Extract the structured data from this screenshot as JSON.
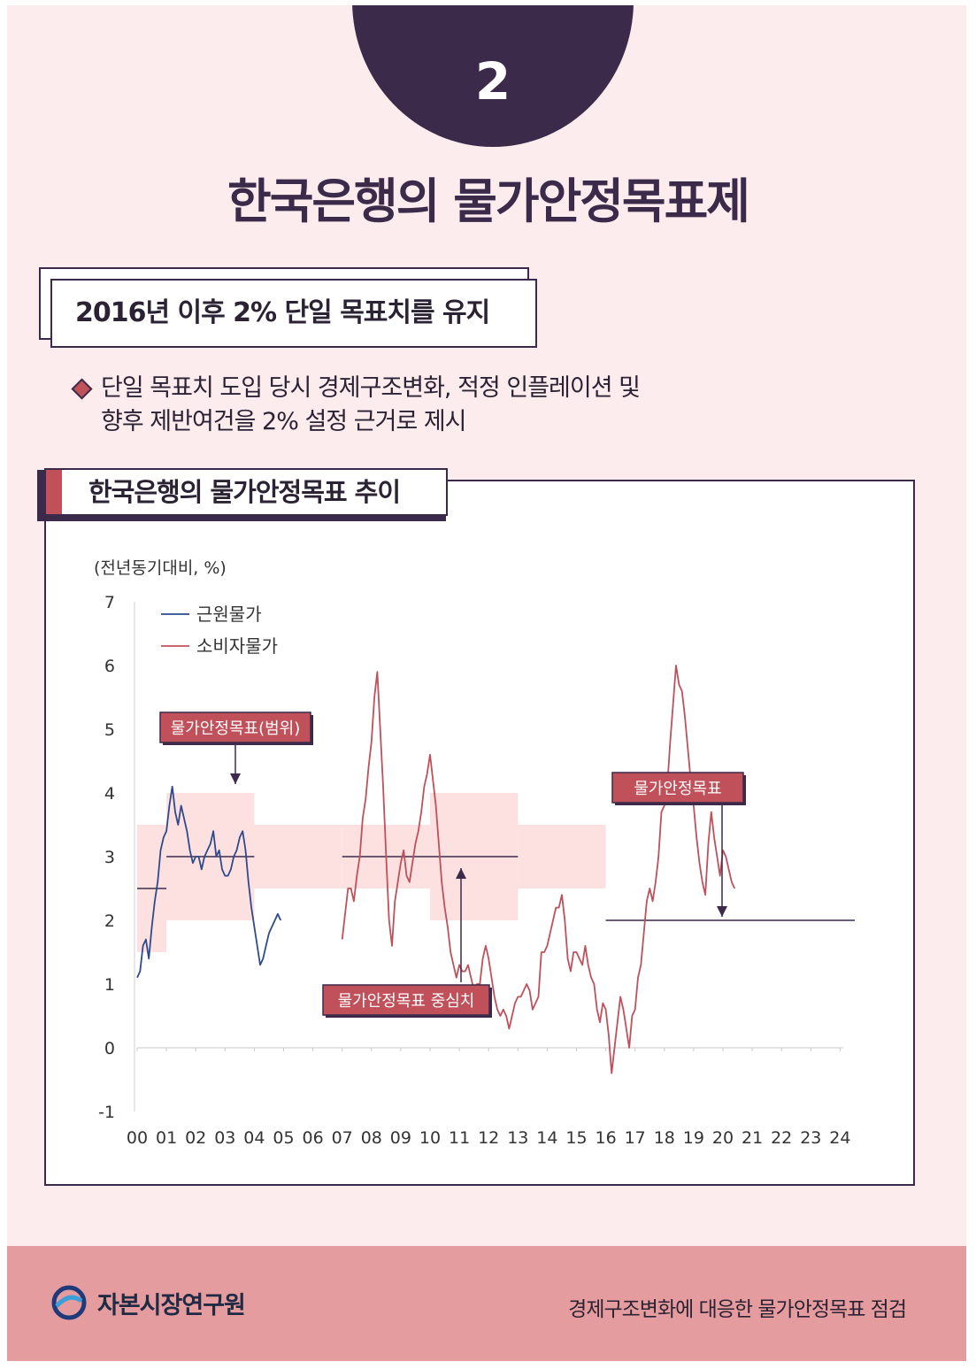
{
  "header": {
    "number": "2",
    "title": "한국은행의 물가안정목표제",
    "subtitle": "2016년 이후 2% 단일 목표치를 유지",
    "bullet_lines": [
      "단일 목표치 도입 당시 경제구조변화, 적정 인플레이션 및",
      "향후 제반여건을 2% 설정 근거로 제시"
    ]
  },
  "chart_panel": {
    "title": "한국은행의 물가안정목표 추이"
  },
  "chart_data": {
    "type": "line",
    "title": "한국은행의 물가안정목표 추이",
    "unit_label": "(전년동기대비, %)",
    "x_tick_labels": [
      "00",
      "01",
      "02",
      "03",
      "04",
      "05",
      "06",
      "07",
      "08",
      "09",
      "10",
      "11",
      "12",
      "13",
      "14",
      "15",
      "16",
      "17",
      "18",
      "19",
      "20",
      "21",
      "22",
      "23",
      "24"
    ],
    "ylim": [
      -1,
      7
    ],
    "y_ticks": [
      7,
      6,
      5,
      4,
      3,
      2,
      1,
      0,
      -1
    ],
    "legend": [
      "근원물가",
      "소비자물가"
    ],
    "legend_position": "top-left",
    "series": [
      {
        "name": "근원물가",
        "color": "#2e4a8c",
        "x0": 2000.0,
        "step": 0.1,
        "values": [
          1.1,
          1.2,
          1.6,
          1.7,
          1.4,
          1.9,
          2.3,
          2.6,
          3.1,
          3.3,
          3.4,
          3.8,
          4.1,
          3.7,
          3.5,
          3.8,
          3.6,
          3.4,
          3.1,
          2.9,
          3.0,
          3.0,
          2.8,
          3.0,
          3.1,
          3.2,
          3.4,
          3.0,
          3.1,
          2.8,
          2.7,
          2.7,
          2.8,
          3.0,
          3.1,
          3.3,
          3.4,
          3.1,
          2.6,
          2.2,
          1.9,
          1.6,
          1.3,
          1.4,
          1.6,
          1.8,
          1.9,
          2.0,
          2.1,
          2.0
        ]
      },
      {
        "name": "소비자물가",
        "color": "#c0505a",
        "x0": 2007.0,
        "step": 0.1,
        "values": [
          1.7,
          2.1,
          2.5,
          2.5,
          2.3,
          2.7,
          3.0,
          3.6,
          3.9,
          4.4,
          4.8,
          5.5,
          5.9,
          5.0,
          4.1,
          3.0,
          2.0,
          1.6,
          2.3,
          2.6,
          2.9,
          3.1,
          2.7,
          2.6,
          2.9,
          3.2,
          3.4,
          3.7,
          4.1,
          4.3,
          4.6,
          4.2,
          3.8,
          3.2,
          2.6,
          2.2,
          1.9,
          1.5,
          1.3,
          1.1,
          1.3,
          1.2,
          1.2,
          1.3,
          1.1,
          0.9,
          1.0,
          1.0,
          1.4,
          1.6,
          1.4,
          1.1,
          0.8,
          0.6,
          0.5,
          0.6,
          0.5,
          0.3,
          0.5,
          0.7,
          0.8,
          0.8,
          0.9,
          1.0,
          0.9,
          0.6,
          0.7,
          0.8,
          1.5,
          1.5,
          1.6,
          1.8,
          2.0,
          2.2,
          2.2,
          2.4,
          2.0,
          1.4,
          1.2,
          1.5,
          1.5,
          1.4,
          1.3,
          1.6,
          1.3,
          1.1,
          1.0,
          0.6,
          0.4,
          0.7,
          0.6,
          0.2,
          -0.4,
          0.0,
          0.4,
          0.8,
          0.6,
          0.3,
          0.0,
          0.5,
          0.6,
          1.1,
          1.3,
          1.8,
          2.3,
          2.5,
          2.3,
          2.6,
          3.0,
          3.7,
          3.8,
          4.1,
          4.8,
          5.4,
          6.0,
          5.7,
          5.6,
          5.2,
          4.7,
          4.2,
          3.8,
          3.3,
          2.9,
          2.6,
          2.4,
          3.2,
          3.7,
          3.3,
          3.0,
          2.7,
          3.1,
          3.0,
          2.8,
          2.6,
          2.5
        ]
      }
    ],
    "target_bands": [
      {
        "x": [
          2000.0,
          2001.0
        ],
        "range": [
          1.5,
          3.5
        ],
        "center": 2.5
      },
      {
        "x": [
          2001.0,
          2004.0
        ],
        "range": [
          2.0,
          4.0
        ],
        "center": 3.0
      },
      {
        "x": [
          2004.0,
          2007.0
        ],
        "range": [
          2.5,
          3.5
        ],
        "center": 3.0
      },
      {
        "x": [
          2007.0,
          2010.0
        ],
        "range": [
          2.5,
          3.5
        ],
        "center": 3.0
      },
      {
        "x": [
          2010.0,
          2013.0
        ],
        "range": [
          2.0,
          4.0
        ],
        "center": 3.0
      },
      {
        "x": [
          2013.0,
          2016.0
        ],
        "range": [
          2.5,
          3.5
        ],
        "center": 3.0
      }
    ],
    "single_target": {
      "x": [
        2016.0,
        2024.5
      ],
      "value": 2.0
    },
    "annotations": {
      "range_label": "물가안정목표(범위)",
      "center_label": "물가안정목표 중심치",
      "target_label": "물가안정목표"
    }
  },
  "footer": {
    "logo_text": "자본시장연구원",
    "report_title": "경제구조변화에 대응한 물가안정목표 점검"
  }
}
